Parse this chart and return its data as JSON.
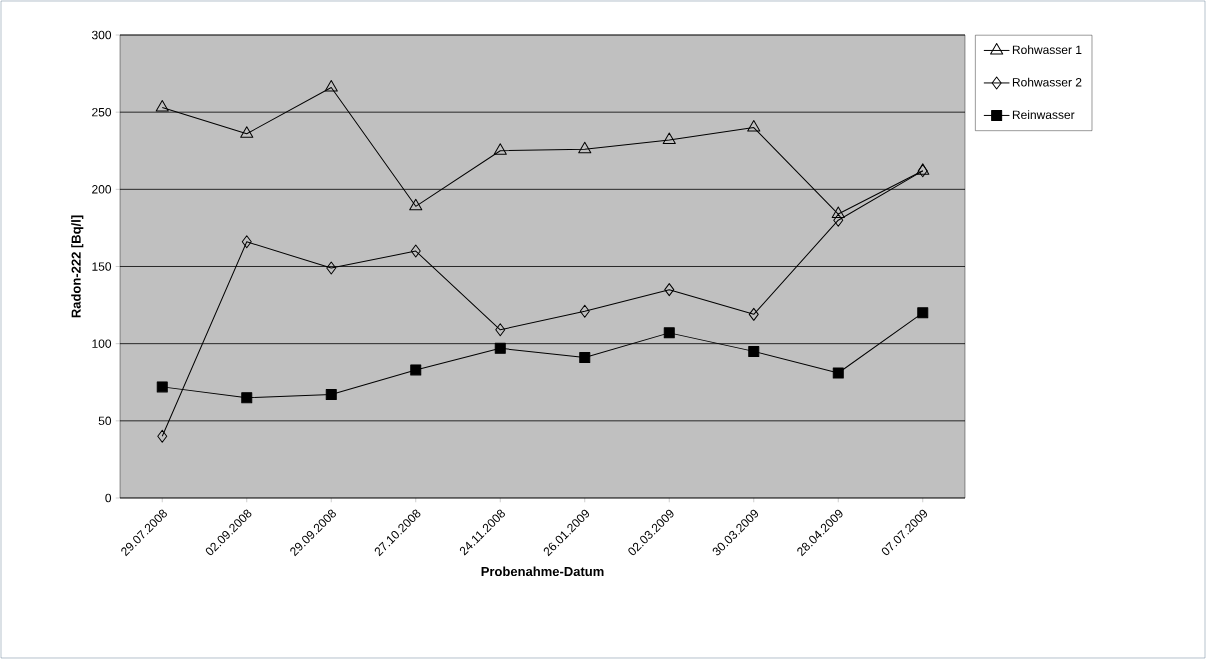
{
  "chart_data": {
    "type": "line",
    "xlabel": "Probenahme-Datum",
    "ylabel": "Radon-222 [Bq/l]",
    "categories": [
      "29.07.2008",
      "02.09.2008",
      "29.09.2008",
      "27.10.2008",
      "24.11.2008",
      "26.01.2009",
      "02.03.2009",
      "30.03.2009",
      "28.04.2009",
      "07.07.2009"
    ],
    "series": [
      {
        "name": "Rohwasser 1",
        "color": "#000000",
        "marker": "triangle",
        "values": [
          253,
          236,
          266,
          189,
          225,
          226,
          232,
          240,
          184,
          212
        ]
      },
      {
        "name": "Rohwasser 2",
        "color": "#000000",
        "marker": "diamond",
        "values": [
          40,
          166,
          149,
          160,
          109,
          121,
          135,
          119,
          180,
          212
        ]
      },
      {
        "name": "Reinwasser",
        "color": "#000000",
        "marker": "square",
        "values": [
          72,
          65,
          67,
          83,
          97,
          91,
          107,
          95,
          81,
          120
        ]
      }
    ],
    "ylim": [
      0,
      300
    ],
    "yticks": [
      0,
      50,
      100,
      150,
      200,
      250,
      300
    ],
    "grid": "y",
    "legend": "top right",
    "line_style": "solid"
  }
}
